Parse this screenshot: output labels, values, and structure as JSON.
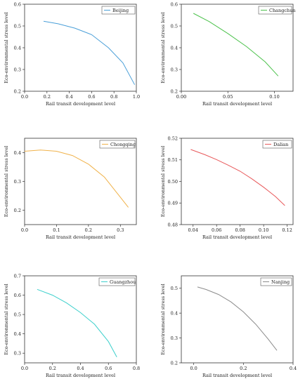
{
  "chart_data": [
    {
      "type": "line",
      "series": [
        {
          "name": "Beijing",
          "color": "#4a9fd8",
          "x": [
            0.17,
            0.3,
            0.45,
            0.6,
            0.75,
            0.88,
            0.985
          ],
          "y": [
            0.522,
            0.51,
            0.49,
            0.46,
            0.4,
            0.33,
            0.23
          ]
        }
      ],
      "xlabel": "Rail transit development level",
      "ylabel": "Eco-environmental stress level",
      "xlim": [
        0.0,
        1.0
      ],
      "ylim": [
        0.2,
        0.6
      ],
      "xticks": [
        0.0,
        0.2,
        0.4,
        0.6,
        0.8,
        1.0
      ],
      "xtick_labels": [
        "0.0",
        "0.2",
        "0.4",
        "0.6",
        "0.8",
        "1.0"
      ],
      "yticks": [
        0.2,
        0.3,
        0.4,
        0.5,
        0.6
      ],
      "ytick_labels": [
        "0.2",
        "0.3",
        "0.4",
        "0.5",
        "0.6"
      ],
      "legend": "top-right"
    },
    {
      "type": "line",
      "series": [
        {
          "name": "Changchun",
          "color": "#4cc24c",
          "x": [
            0.013,
            0.03,
            0.05,
            0.07,
            0.09,
            0.104
          ],
          "y": [
            0.558,
            0.52,
            0.465,
            0.405,
            0.335,
            0.27
          ]
        }
      ],
      "xlabel": "Rail transit development level",
      "ylabel": "Eco-environmental stress level",
      "xlim": [
        0.0,
        0.12
      ],
      "ylim": [
        0.2,
        0.6
      ],
      "xticks": [
        0.0,
        0.05,
        0.1
      ],
      "xtick_labels": [
        "0.00",
        "0.05",
        "0.10"
      ],
      "yticks": [
        0.2,
        0.3,
        0.4,
        0.5,
        0.6
      ],
      "ytick_labels": [
        "0.2",
        "0.3",
        "0.4",
        "0.5",
        "0.6"
      ],
      "legend": "top-right"
    },
    {
      "type": "line",
      "series": [
        {
          "name": "Chongqing",
          "color": "#f0b24a",
          "x": [
            0.0,
            0.05,
            0.1,
            0.15,
            0.2,
            0.25,
            0.3,
            0.325
          ],
          "y": [
            0.405,
            0.409,
            0.405,
            0.39,
            0.36,
            0.315,
            0.245,
            0.21
          ]
        }
      ],
      "xlabel": "Rail transit development level",
      "ylabel": "Eco-environmental stress level",
      "xlim": [
        0.0,
        0.35
      ],
      "ylim": [
        0.15,
        0.45
      ],
      "xticks": [
        0.0,
        0.1,
        0.2,
        0.3
      ],
      "xtick_labels": [
        "0.0",
        "0.1",
        "0.2",
        "0.3"
      ],
      "yticks": [
        0.2,
        0.3,
        0.4
      ],
      "ytick_labels": [
        "0.2",
        "0.3",
        "0.4"
      ],
      "legend": "top-right"
    },
    {
      "type": "line",
      "series": [
        {
          "name": "Dalian",
          "color": "#e8585a",
          "x": [
            0.038,
            0.05,
            0.06,
            0.07,
            0.08,
            0.09,
            0.1,
            0.11,
            0.118
          ],
          "y": [
            0.5148,
            0.5124,
            0.5101,
            0.5075,
            0.5047,
            0.5012,
            0.4973,
            0.493,
            0.4888
          ]
        }
      ],
      "xlabel": "Rail transit development level",
      "ylabel": "Eco-environmental stress level",
      "xlim": [
        0.03,
        0.125
      ],
      "ylim": [
        0.48,
        0.52
      ],
      "xticks": [
        0.04,
        0.06,
        0.08,
        0.1,
        0.12
      ],
      "xtick_labels": [
        "0.04",
        "0.06",
        "0.08",
        "0.10",
        "0.12"
      ],
      "yticks": [
        0.48,
        0.49,
        0.5,
        0.51,
        0.52
      ],
      "ytick_labels": [
        "0.48",
        "0.49",
        "0.50",
        "0.51",
        "0.52"
      ],
      "legend": "top-right"
    },
    {
      "type": "line",
      "series": [
        {
          "name": "Guangzhou",
          "color": "#3dd0cc",
          "x": [
            0.09,
            0.2,
            0.3,
            0.4,
            0.5,
            0.6,
            0.66
          ],
          "y": [
            0.63,
            0.6,
            0.56,
            0.51,
            0.45,
            0.36,
            0.28
          ]
        }
      ],
      "xlabel": "Rail transit development level",
      "ylabel": "Eco-environmental stress level",
      "xlim": [
        0.0,
        0.8
      ],
      "ylim": [
        0.25,
        0.7
      ],
      "xticks": [
        0.0,
        0.2,
        0.4,
        0.6,
        0.8
      ],
      "xtick_labels": [
        "0.0",
        "0.2",
        "0.4",
        "0.6",
        "0.8"
      ],
      "yticks": [
        0.3,
        0.4,
        0.5,
        0.6,
        0.7
      ],
      "ytick_labels": [
        "0.3",
        "0.4",
        "0.5",
        "0.6",
        "0.7"
      ],
      "legend": "top-right"
    },
    {
      "type": "line",
      "series": [
        {
          "name": "Nanjing",
          "color": "#8c8c8c",
          "x": [
            0.015,
            0.05,
            0.1,
            0.15,
            0.2,
            0.25,
            0.3,
            0.335
          ],
          "y": [
            0.505,
            0.495,
            0.475,
            0.445,
            0.405,
            0.355,
            0.295,
            0.25
          ]
        }
      ],
      "xlabel": "Rail transit development level",
      "ylabel": "Eco-environmental stress level",
      "xlim": [
        -0.05,
        0.4
      ],
      "ylim": [
        0.2,
        0.55
      ],
      "xticks": [
        0.0,
        0.2,
        0.4
      ],
      "xtick_labels": [
        "0.0",
        "0.2",
        "0.4"
      ],
      "yticks": [
        0.2,
        0.3,
        0.4,
        0.5
      ],
      "ytick_labels": [
        "0.2",
        "0.3",
        "0.4",
        "0.5"
      ],
      "legend": "top-right"
    }
  ]
}
